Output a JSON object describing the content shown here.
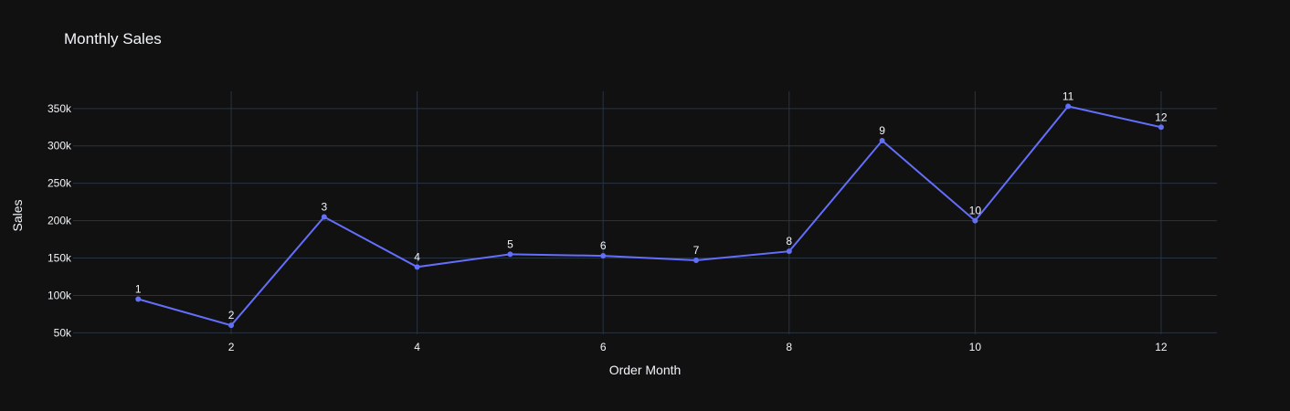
{
  "chart_data": {
    "type": "line",
    "title": "Monthly Sales",
    "xlabel": "Order Month",
    "ylabel": "Sales",
    "x": [
      1,
      2,
      3,
      4,
      5,
      6,
      7,
      8,
      9,
      10,
      11,
      12
    ],
    "values": [
      95000,
      60000,
      205000,
      138000,
      155000,
      153000,
      147000,
      159000,
      307000,
      200000,
      353000,
      325000
    ],
    "point_labels": [
      "1",
      "2",
      "3",
      "4",
      "5",
      "6",
      "7",
      "8",
      "9",
      "10",
      "11",
      "12"
    ],
    "x_ticks": [
      2,
      4,
      6,
      8,
      10,
      12
    ],
    "x_tick_labels": [
      "2",
      "4",
      "6",
      "8",
      "10",
      "12"
    ],
    "y_ticks": [
      50000,
      100000,
      150000,
      200000,
      250000,
      300000,
      350000
    ],
    "y_tick_labels": [
      "50k",
      "100k",
      "150k",
      "200k",
      "250k",
      "300k",
      "350k"
    ],
    "xlim": [
      0.3,
      12.6
    ],
    "ylim": [
      48000,
      373000
    ],
    "grid": true,
    "colors": {
      "background": "#111111",
      "grid": "#283442",
      "line": "#636efa",
      "text": "#f2f5fa"
    }
  }
}
